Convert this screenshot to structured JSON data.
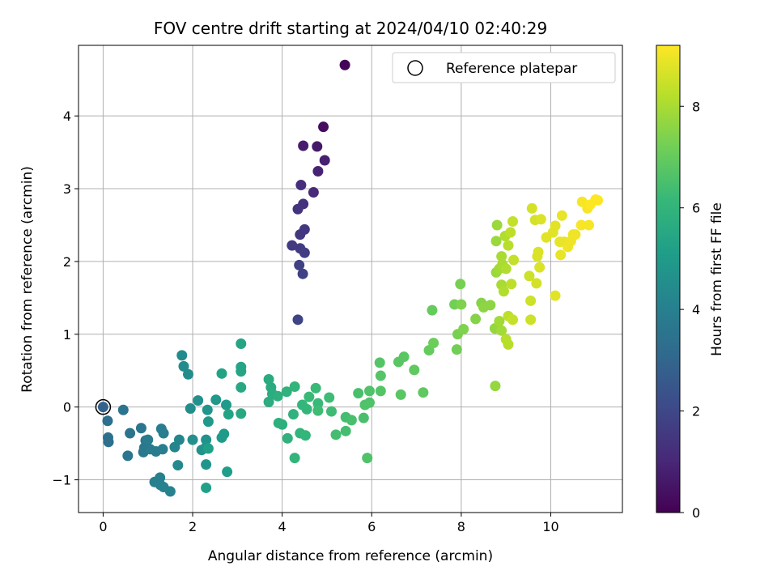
{
  "chart_data": {
    "type": "scatter",
    "title": "FOV centre drift starting at 2024/04/10 02:40:29",
    "xlabel": "Angular distance from reference (arcmin)",
    "ylabel": "Rotation from reference (arcmin)",
    "colorbar_label": "Hours from first FF file",
    "xlim": [
      -0.55,
      11.6
    ],
    "ylim": [
      -1.45,
      4.97
    ],
    "clim": [
      0,
      9.2
    ],
    "xticks": [
      0,
      2,
      4,
      6,
      8,
      10
    ],
    "yticks": [
      -1,
      0,
      1,
      2,
      3,
      4
    ],
    "cticks": [
      0,
      2,
      4,
      6,
      8
    ],
    "grid": true,
    "colormap": "viridis",
    "legend": {
      "placement": "top-right",
      "label": "Reference platepar"
    },
    "reference_point": {
      "x": 0,
      "y": 0
    },
    "points": [
      [
        5.4,
        4.7,
        0.1
      ],
      [
        4.92,
        3.85,
        0.3
      ],
      [
        4.47,
        3.59,
        0.7
      ],
      [
        4.78,
        3.58,
        0.6
      ],
      [
        4.95,
        3.39,
        0.8
      ],
      [
        4.8,
        3.24,
        0.9
      ],
      [
        4.42,
        3.05,
        1.2
      ],
      [
        4.7,
        2.95,
        1.1
      ],
      [
        4.47,
        2.79,
        1.3
      ],
      [
        4.35,
        2.72,
        1.4
      ],
      [
        4.5,
        2.44,
        1.5
      ],
      [
        4.4,
        2.37,
        1.5
      ],
      [
        4.22,
        2.22,
        1.6
      ],
      [
        4.4,
        2.18,
        1.6
      ],
      [
        4.5,
        2.12,
        1.7
      ],
      [
        4.38,
        1.95,
        1.8
      ],
      [
        4.46,
        1.83,
        1.8
      ],
      [
        4.35,
        1.2,
        1.9
      ],
      [
        0.0,
        0.0,
        2.9
      ],
      [
        0.1,
        -0.19,
        3.3
      ],
      [
        0.11,
        -0.42,
        3.4
      ],
      [
        0.12,
        -0.48,
        3.4
      ],
      [
        0.45,
        -0.04,
        3.5
      ],
      [
        0.6,
        -0.36,
        3.5
      ],
      [
        0.55,
        -0.67,
        3.6
      ],
      [
        0.85,
        -0.29,
        3.6
      ],
      [
        0.95,
        -0.46,
        3.7
      ],
      [
        0.92,
        -0.56,
        3.7
      ],
      [
        0.9,
        -0.62,
        3.7
      ],
      [
        1.0,
        -0.45,
        3.8
      ],
      [
        1.05,
        -0.58,
        3.8
      ],
      [
        1.18,
        -0.61,
        3.8
      ],
      [
        1.3,
        -0.3,
        3.9
      ],
      [
        1.35,
        -0.36,
        3.9
      ],
      [
        1.33,
        -0.58,
        3.9
      ],
      [
        1.15,
        -1.03,
        4.0
      ],
      [
        1.27,
        -0.97,
        4.0
      ],
      [
        1.28,
        -1.07,
        4.0
      ],
      [
        1.35,
        -1.1,
        4.1
      ],
      [
        1.5,
        -1.16,
        4.1
      ],
      [
        1.6,
        -0.55,
        4.2
      ],
      [
        1.7,
        -0.45,
        4.2
      ],
      [
        1.67,
        -0.8,
        4.3
      ],
      [
        1.76,
        0.71,
        4.4
      ],
      [
        1.8,
        0.56,
        4.4
      ],
      [
        1.9,
        0.45,
        4.5
      ],
      [
        1.95,
        -0.02,
        4.5
      ],
      [
        2.0,
        -0.45,
        4.6
      ],
      [
        2.12,
        0.09,
        4.6
      ],
      [
        2.2,
        -0.59,
        4.7
      ],
      [
        2.3,
        -0.45,
        4.7
      ],
      [
        2.3,
        -0.55,
        4.8
      ],
      [
        2.3,
        -0.79,
        4.8
      ],
      [
        2.33,
        -0.04,
        4.8
      ],
      [
        2.35,
        -0.2,
        4.9
      ],
      [
        2.52,
        0.1,
        4.9
      ],
      [
        2.65,
        -0.42,
        5.0
      ],
      [
        2.7,
        -0.37,
        5.0
      ],
      [
        2.75,
        0.03,
        5.0
      ],
      [
        2.77,
        -0.89,
        5.1
      ],
      [
        2.3,
        -1.11,
        5.2
      ],
      [
        2.35,
        -0.57,
        5.2
      ],
      [
        2.65,
        0.46,
        5.3
      ],
      [
        2.8,
        -0.1,
        5.3
      ],
      [
        3.08,
        0.87,
        5.4
      ],
      [
        3.08,
        0.55,
        5.4
      ],
      [
        3.08,
        0.49,
        5.4
      ],
      [
        3.08,
        0.27,
        5.5
      ],
      [
        3.08,
        -0.09,
        5.5
      ],
      [
        3.7,
        0.38,
        5.6
      ],
      [
        3.75,
        0.27,
        5.6
      ],
      [
        3.7,
        0.07,
        5.7
      ],
      [
        3.78,
        0.18,
        5.7
      ],
      [
        3.9,
        0.15,
        5.8
      ],
      [
        3.92,
        -0.22,
        5.8
      ],
      [
        4.0,
        -0.24,
        5.8
      ],
      [
        4.1,
        0.21,
        5.9
      ],
      [
        4.12,
        -0.43,
        5.9
      ],
      [
        4.25,
        -0.1,
        5.9
      ],
      [
        4.28,
        0.28,
        6.0
      ],
      [
        4.28,
        -0.7,
        6.0
      ],
      [
        4.4,
        -0.36,
        6.0
      ],
      [
        4.45,
        0.03,
        6.1
      ],
      [
        4.52,
        -0.39,
        6.1
      ],
      [
        4.55,
        -0.03,
        6.1
      ],
      [
        4.6,
        0.14,
        6.2
      ],
      [
        4.75,
        0.26,
        6.2
      ],
      [
        4.8,
        0.05,
        6.2
      ],
      [
        4.8,
        -0.05,
        6.3
      ],
      [
        5.05,
        0.13,
        6.3
      ],
      [
        5.1,
        -0.06,
        6.3
      ],
      [
        5.2,
        -0.38,
        6.4
      ],
      [
        5.42,
        -0.14,
        6.4
      ],
      [
        5.42,
        -0.33,
        6.4
      ],
      [
        5.55,
        -0.18,
        6.5
      ],
      [
        5.7,
        0.19,
        6.5
      ],
      [
        5.82,
        -0.15,
        6.5
      ],
      [
        5.85,
        0.03,
        6.6
      ],
      [
        5.9,
        -0.7,
        6.6
      ],
      [
        5.95,
        0.06,
        6.6
      ],
      [
        5.95,
        0.22,
        6.6
      ],
      [
        6.18,
        0.61,
        6.7
      ],
      [
        6.2,
        0.43,
        6.7
      ],
      [
        6.2,
        0.22,
        6.7
      ],
      [
        6.6,
        0.62,
        6.8
      ],
      [
        6.65,
        0.17,
        6.8
      ],
      [
        6.72,
        0.69,
        6.8
      ],
      [
        6.95,
        0.51,
        6.9
      ],
      [
        7.15,
        0.2,
        6.9
      ],
      [
        7.28,
        0.78,
        7.0
      ],
      [
        7.35,
        1.33,
        7.0
      ],
      [
        7.38,
        0.88,
        7.1
      ],
      [
        7.85,
        1.41,
        7.2
      ],
      [
        7.9,
        0.79,
        7.2
      ],
      [
        7.92,
        1.0,
        7.3
      ],
      [
        7.98,
        1.69,
        7.3
      ],
      [
        8.0,
        1.41,
        7.4
      ],
      [
        8.05,
        1.07,
        7.4
      ],
      [
        8.32,
        1.21,
        7.5
      ],
      [
        8.45,
        1.43,
        7.5
      ],
      [
        8.5,
        1.37,
        7.6
      ],
      [
        8.65,
        1.4,
        7.6
      ],
      [
        8.76,
        0.29,
        7.7
      ],
      [
        8.75,
        1.08,
        7.7
      ],
      [
        8.78,
        1.85,
        7.8
      ],
      [
        8.8,
        2.5,
        7.8
      ],
      [
        8.78,
        2.28,
        7.8
      ],
      [
        8.85,
        1.18,
        7.9
      ],
      [
        8.85,
        1.9,
        7.9
      ],
      [
        8.9,
        1.05,
        7.9
      ],
      [
        8.9,
        1.68,
        8.0
      ],
      [
        8.9,
        2.07,
        8.0
      ],
      [
        8.92,
        1.96,
        8.0
      ],
      [
        8.95,
        1.59,
        8.1
      ],
      [
        8.98,
        2.35,
        8.1
      ],
      [
        9.0,
        1.9,
        8.1
      ],
      [
        9.0,
        0.93,
        8.2
      ],
      [
        9.05,
        2.22,
        8.2
      ],
      [
        9.05,
        0.86,
        8.2
      ],
      [
        9.05,
        1.25,
        8.3
      ],
      [
        9.1,
        2.4,
        8.3
      ],
      [
        9.12,
        1.69,
        8.3
      ],
      [
        9.15,
        1.2,
        8.4
      ],
      [
        9.15,
        2.55,
        8.4
      ],
      [
        9.17,
        2.02,
        8.4
      ],
      [
        9.52,
        1.8,
        8.5
      ],
      [
        9.55,
        1.46,
        8.5
      ],
      [
        9.55,
        1.2,
        8.5
      ],
      [
        9.58,
        2.73,
        8.6
      ],
      [
        9.65,
        2.57,
        8.6
      ],
      [
        9.68,
        1.7,
        8.6
      ],
      [
        9.7,
        2.07,
        8.7
      ],
      [
        9.72,
        2.13,
        8.7
      ],
      [
        9.75,
        1.92,
        8.7
      ],
      [
        9.78,
        2.58,
        8.7
      ],
      [
        9.9,
        2.33,
        8.8
      ],
      [
        10.05,
        2.4,
        8.8
      ],
      [
        10.1,
        2.49,
        8.8
      ],
      [
        10.1,
        1.53,
        8.8
      ],
      [
        10.2,
        2.27,
        8.9
      ],
      [
        10.22,
        2.09,
        8.9
      ],
      [
        10.25,
        2.63,
        8.9
      ],
      [
        10.3,
        2.27,
        8.9
      ],
      [
        10.38,
        2.2,
        9.0
      ],
      [
        10.45,
        2.28,
        9.0
      ],
      [
        10.5,
        2.37,
        9.0
      ],
      [
        10.55,
        2.37,
        9.0
      ],
      [
        10.68,
        2.5,
        9.1
      ],
      [
        10.7,
        2.82,
        9.1
      ],
      [
        10.82,
        2.73,
        9.1
      ],
      [
        10.85,
        2.5,
        9.1
      ],
      [
        10.88,
        2.78,
        9.2
      ],
      [
        11.0,
        2.85,
        9.2
      ],
      [
        11.05,
        2.84,
        9.2
      ]
    ]
  }
}
